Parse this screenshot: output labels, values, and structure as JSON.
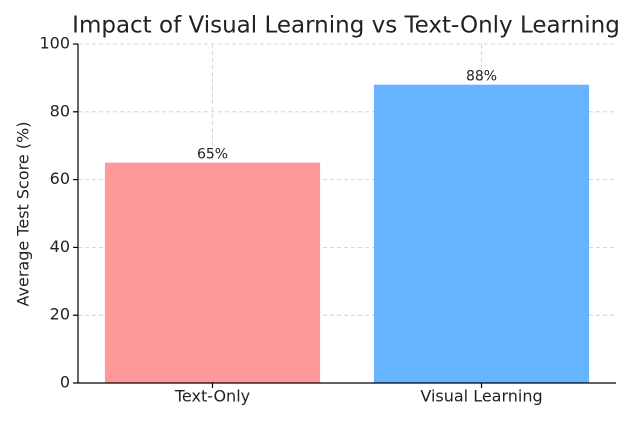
{
  "chart_data": {
    "type": "bar",
    "title": "Impact of Visual Learning vs Text-Only Learning",
    "ylabel": "Average Test Score (%)",
    "categories": [
      "Text-Only",
      "Visual Learning"
    ],
    "values": [
      65,
      88
    ],
    "value_labels": [
      "65%",
      "88%"
    ],
    "colors": [
      "#ff9999",
      "#66b3ff"
    ],
    "ylim": [
      0,
      100
    ],
    "yticks": [
      0,
      20,
      40,
      60,
      80,
      100
    ],
    "grid": true
  }
}
